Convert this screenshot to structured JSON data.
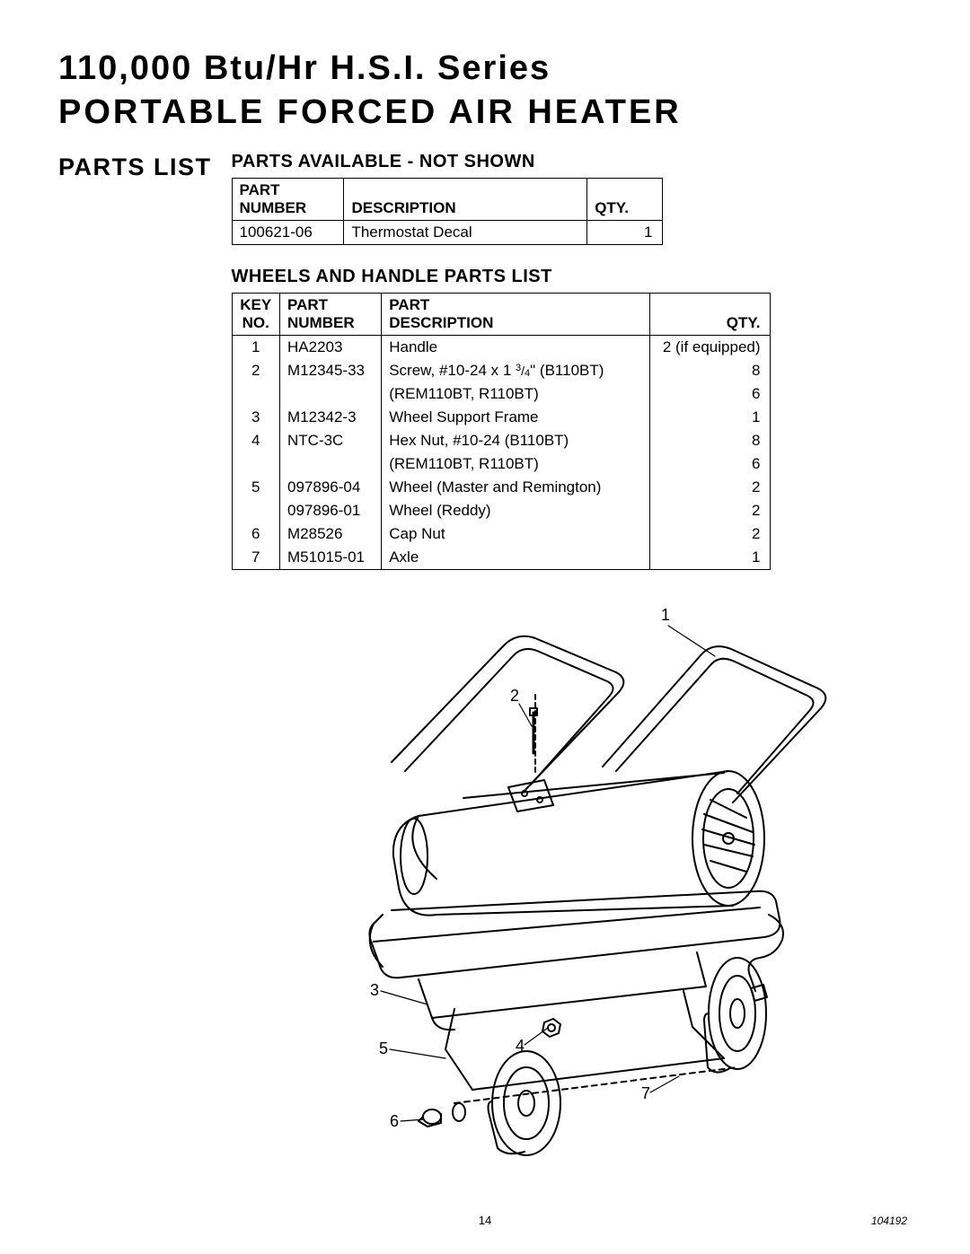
{
  "header": {
    "line1": "110,000 Btu/Hr H.S.I. Series",
    "line2": "PORTABLE FORCED AIR HEATER"
  },
  "section_heading": "PARTS LIST",
  "table1": {
    "title": "PARTS AVAILABLE - NOT SHOWN",
    "headers": {
      "col1a": "PART",
      "col1b": "NUMBER",
      "col2": "DESCRIPTION",
      "col3": "QTY."
    },
    "rows": [
      {
        "number": "100621-06",
        "desc": "Thermostat Decal",
        "qty": "1"
      }
    ]
  },
  "table2": {
    "title": "WHEELS AND HANDLE PARTS LIST",
    "headers": {
      "col1a": "KEY",
      "col1b": "NO.",
      "col2a": "PART",
      "col2b": "NUMBER",
      "col3a": "PART",
      "col3b": "DESCRIPTION",
      "col4": "QTY."
    },
    "rows": [
      {
        "key": "1",
        "number": "HA2203",
        "desc": "Handle",
        "qty": "2 (if equipped)"
      },
      {
        "key": "2",
        "number": "M12345-33",
        "desc_pre": "Screw, #10-24 x 1 ",
        "frac_n": "3",
        "frac_d": "4",
        "desc_post": "\" (B110BT)",
        "qty": "8"
      },
      {
        "key": "",
        "number": "",
        "desc": "(REM110BT, R110BT)",
        "qty": "6"
      },
      {
        "key": "3",
        "number": "M12342-3",
        "desc": "Wheel Support Frame",
        "qty": "1"
      },
      {
        "key": "4",
        "number": "NTC-3C",
        "desc": "Hex Nut, #10-24 (B110BT)",
        "qty": "8"
      },
      {
        "key": "",
        "number": "",
        "desc": "(REM110BT, R110BT)",
        "qty": "6"
      },
      {
        "key": "5",
        "number": "097896-04",
        "desc": "Wheel (Master and Remington)",
        "qty": "2"
      },
      {
        "key": "",
        "number": "097896-01",
        "desc": "Wheel (Reddy)",
        "qty": "2"
      },
      {
        "key": "6",
        "number": "M28526",
        "desc": "Cap Nut",
        "qty": "2"
      },
      {
        "key": "7",
        "number": "M51015-01",
        "desc": "Axle",
        "qty": "1"
      }
    ]
  },
  "diagram": {
    "callouts": {
      "c1": "1",
      "c2": "2",
      "c3": "3",
      "c4": "4",
      "c5": "5",
      "c6": "6",
      "c7": "7"
    },
    "stroke": "#000000",
    "label_fontsize": 18
  },
  "footer": {
    "page_number": "14",
    "doc_id": "104192"
  }
}
